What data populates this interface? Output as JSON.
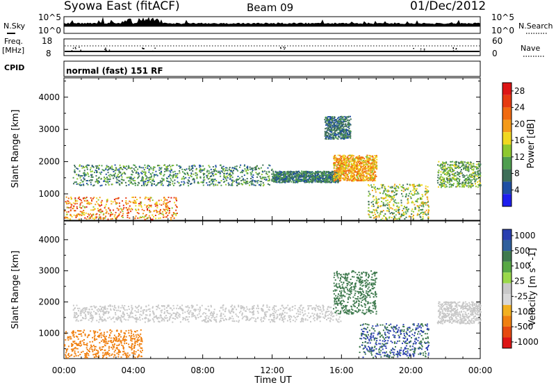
{
  "header": {
    "title": "Syowa East (fitACF)",
    "beam": "Beam 09",
    "date": "01/Dec/2012"
  },
  "top_panel": {
    "nsky_label": "N.Sky",
    "nsearch_label": "N.Search",
    "ticks_left": [
      "10^5",
      "10^0"
    ],
    "ticks_right": [
      "10^5",
      "10^0"
    ],
    "freq_label": "Freq.",
    "freq_unit": "[MHz]",
    "freq_ticks": [
      "18",
      "8"
    ],
    "nave_label": "Nave",
    "nave_ticks": [
      "60",
      "0"
    ],
    "cpid_label": "CPID",
    "cpid_text": "normal (fast) 151 RF"
  },
  "colors": {
    "power_scale": [
      "#1E1EEE",
      "#1F4FA3",
      "#3E6E58",
      "#4F9E4F",
      "#8EC82E",
      "#F0D820",
      "#F49A1A",
      "#F06A10",
      "#E63A10",
      "#DD1515"
    ],
    "velocity_scale": [
      "#2A3FB0",
      "#2F5F9C",
      "#3F7A4E",
      "#58A845",
      "#9AD84A",
      "#C8C8C8",
      "#D8D8D8",
      "#F2B020",
      "#F08010",
      "#E64A10",
      "#DD1515"
    ]
  },
  "chart_data": [
    {
      "type": "heatmap",
      "title": "",
      "xlabel": "",
      "ylabel": "Slant Range [km]",
      "x_ticks": [
        "00:00",
        "04:00",
        "08:00",
        "12:00",
        "16:00",
        "20:00",
        "00:00"
      ],
      "y_ticks": [
        1000,
        2000,
        3000,
        4000
      ],
      "xlim": [
        0,
        24
      ],
      "ylim": [
        180,
        4600
      ],
      "colorbar": {
        "label": "Power [dB]",
        "ticks": [
          "4",
          "8",
          "12",
          "16",
          "20",
          "24",
          "28"
        ],
        "range": [
          0,
          30
        ]
      },
      "scatter_regions": [
        {
          "t": [
            0.5,
            12.0
          ],
          "r": [
            1250,
            1900
          ],
          "value_range": [
            4,
            14
          ],
          "density": "high"
        },
        {
          "t": [
            12.0,
            15.8
          ],
          "r": [
            1350,
            1700
          ],
          "value_range": [
            4,
            12
          ],
          "density": "high"
        },
        {
          "t": [
            15.5,
            18.0
          ],
          "r": [
            1400,
            2200
          ],
          "value_range": [
            14,
            24
          ],
          "density": "high"
        },
        {
          "t": [
            0.0,
            6.5
          ],
          "r": [
            200,
            900
          ],
          "value_range": [
            14,
            28
          ],
          "density": "medium"
        },
        {
          "t": [
            15.0,
            16.5
          ],
          "r": [
            2700,
            3400
          ],
          "value_range": [
            4,
            10
          ],
          "density": "medium"
        },
        {
          "t": [
            17.5,
            21.0
          ],
          "r": [
            200,
            1300
          ],
          "value_range": [
            6,
            20
          ],
          "density": "medium"
        },
        {
          "t": [
            21.5,
            24.0
          ],
          "r": [
            1200,
            2000
          ],
          "value_range": [
            6,
            16
          ],
          "density": "medium"
        }
      ]
    },
    {
      "type": "heatmap",
      "title": "",
      "xlabel": "Time UT",
      "ylabel": "Slant Range [km]",
      "x_ticks": [
        "00:00",
        "04:00",
        "08:00",
        "12:00",
        "16:00",
        "20:00",
        "00:00"
      ],
      "y_ticks": [
        1000,
        2000,
        3000,
        4000
      ],
      "xlim": [
        0,
        24
      ],
      "ylim": [
        180,
        4600
      ],
      "colorbar": {
        "label": "Velocity [m s^-1]",
        "ticks": [
          "1000",
          "500",
          "100",
          "25",
          "-25",
          "-100",
          "-500",
          "-1000"
        ],
        "range": [
          -1000,
          1000
        ]
      },
      "scatter_regions": [
        {
          "t": [
            0.5,
            16.0
          ],
          "r": [
            1350,
            1900
          ],
          "value_range": [
            -25,
            25
          ],
          "density": "high"
        },
        {
          "t": [
            0.0,
            4.5
          ],
          "r": [
            200,
            1100
          ],
          "value_range": [
            -500,
            -100
          ],
          "density": "medium"
        },
        {
          "t": [
            15.5,
            18.0
          ],
          "r": [
            1600,
            3000
          ],
          "value_range": [
            100,
            500
          ],
          "density": "medium"
        },
        {
          "t": [
            17.0,
            21.0
          ],
          "r": [
            200,
            1300
          ],
          "value_range": [
            100,
            1000
          ],
          "density": "medium"
        },
        {
          "t": [
            21.5,
            24.0
          ],
          "r": [
            1300,
            2000
          ],
          "value_range": [
            -25,
            25
          ],
          "density": "medium"
        }
      ]
    }
  ]
}
